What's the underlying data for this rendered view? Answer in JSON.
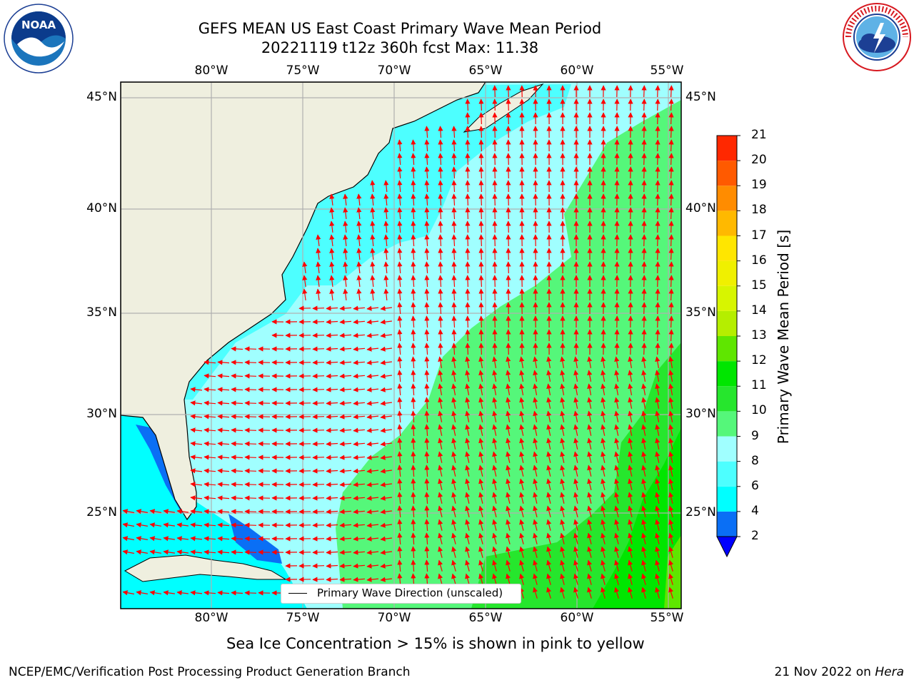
{
  "header": {
    "title_line1": "GEFS MEAN US East Coast Primary Wave Mean Period",
    "title_line2": "20221119 t12z 360h fcst   Max: 11.38"
  },
  "logos": {
    "left": "noaa-logo",
    "right": "nws-logo"
  },
  "map": {
    "lon_labels": [
      "80°W",
      "75°W",
      "70°W",
      "65°W",
      "60°W",
      "55°W"
    ],
    "lat_labels": [
      "45°N",
      "40°N",
      "35°N",
      "30°N",
      "25°N"
    ],
    "legend_text": "Primary Wave Direction (unscaled)",
    "arrow_color": "#ff0000",
    "land_color": "#efefdf",
    "coast_color": "#000000",
    "grid_color": "#b0b0b0"
  },
  "colorbar": {
    "label": "Primary Wave Mean Period [s]",
    "ticks": [
      "2",
      "4",
      "6",
      "8",
      "9",
      "10",
      "11",
      "12",
      "13",
      "14",
      "15",
      "16",
      "17",
      "18",
      "19",
      "20",
      "21"
    ],
    "colors": [
      "#0a6ff5",
      "#00ffff",
      "#4dffff",
      "#a0ffff",
      "#55f77a",
      "#26e62d",
      "#00e600",
      "#5fe600",
      "#b5ee00",
      "#d7f500",
      "#f0f000",
      "#ffe600",
      "#ffb900",
      "#ff8c00",
      "#ff5a00",
      "#ff2800"
    ],
    "under_color": "#0000ff"
  },
  "footer": {
    "note": "Sea Ice Concentration > 15% is shown in pink to yellow",
    "credit": "NCEP/EMC/Verification Post Processing Product Generation Branch",
    "date": "21 Nov 2022 on",
    "machine": "Hera"
  }
}
